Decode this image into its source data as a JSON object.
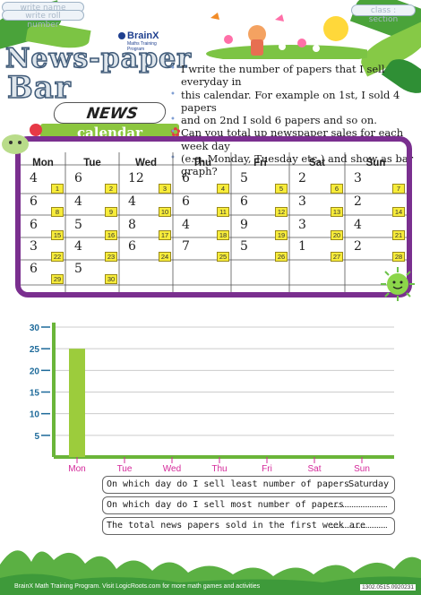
{
  "header": {
    "name_placeholder": "write name",
    "roll_placeholder": "write roll number",
    "class_placeholder": "class : section"
  },
  "brand": {
    "name": "BrainX",
    "tagline": "Maths Training Program"
  },
  "title": {
    "line1": "News-paper",
    "line2": "Bar",
    "news_label": "NEWS",
    "calendar_label": "calendar"
  },
  "instructions": [
    "I write the number of papers that I sell everyday in",
    "this calendar. For example on 1st, I sold 4 papers",
    "and on 2nd I sold 6 papers and so on.",
    "Can you total up newspaper sales for each week day",
    "(e.g. Monday, Tuesday etc.) and show as bar graph?"
  ],
  "calendar": {
    "days": [
      "Mon",
      "Tue",
      "Wed",
      "Thu",
      "Fri",
      "Sat",
      "Sun"
    ],
    "weeks": [
      [
        {
          "sold": "4",
          "date": "1"
        },
        {
          "sold": "6",
          "date": "2"
        },
        {
          "sold": "12",
          "date": "3"
        },
        {
          "sold": "6",
          "date": "4"
        },
        {
          "sold": "5",
          "date": "5"
        },
        {
          "sold": "2",
          "date": "6"
        },
        {
          "sold": "3",
          "date": "7"
        }
      ],
      [
        {
          "sold": "6",
          "date": "8"
        },
        {
          "sold": "4",
          "date": "9"
        },
        {
          "sold": "4",
          "date": "10"
        },
        {
          "sold": "6",
          "date": "11"
        },
        {
          "sold": "6",
          "date": "12"
        },
        {
          "sold": "3",
          "date": "13"
        },
        {
          "sold": "2",
          "date": "14"
        }
      ],
      [
        {
          "sold": "6",
          "date": "15"
        },
        {
          "sold": "5",
          "date": "16"
        },
        {
          "sold": "8",
          "date": "17"
        },
        {
          "sold": "4",
          "date": "18"
        },
        {
          "sold": "9",
          "date": "19"
        },
        {
          "sold": "3",
          "date": "20"
        },
        {
          "sold": "4",
          "date": "21"
        }
      ],
      [
        {
          "sold": "3",
          "date": "22"
        },
        {
          "sold": "4",
          "date": "23"
        },
        {
          "sold": "6",
          "date": "24"
        },
        {
          "sold": "7",
          "date": "25"
        },
        {
          "sold": "5",
          "date": "26"
        },
        {
          "sold": "1",
          "date": "27"
        },
        {
          "sold": "2",
          "date": "28"
        }
      ],
      [
        {
          "sold": "6",
          "date": "29"
        },
        {
          "sold": "5",
          "date": "30"
        },
        null,
        null,
        null,
        null,
        null
      ]
    ]
  },
  "chart_data": {
    "type": "bar",
    "categories": [
      "Mon",
      "Tue",
      "Wed",
      "Thu",
      "Fri",
      "Sat",
      "Sun"
    ],
    "values": [
      25,
      0,
      0,
      0,
      0,
      0,
      0
    ],
    "ylim": [
      0,
      30
    ],
    "yticks": [
      "5",
      "10",
      "15",
      "20",
      "25",
      "30"
    ],
    "bar_color": "#9ccc3c",
    "label_color": "#d4289a",
    "axis_color": "#6ab539"
  },
  "questions": [
    {
      "text": "On which day do I sell least number of papers",
      "answer": "Saturday"
    },
    {
      "text": "On which day do I  sell most number of papers",
      "answer": ""
    },
    {
      "text": "The total news papers sold in the first week are",
      "answer": ""
    }
  ],
  "footer": {
    "text": "BrainX Math Training Program. Visit LogicRoots.com for more math games and activities",
    "code": "1302.0515.0920231"
  },
  "colors": {
    "purple": "#7a2f8f",
    "green": "#6ab539",
    "yellow": "#f7ec3a"
  }
}
